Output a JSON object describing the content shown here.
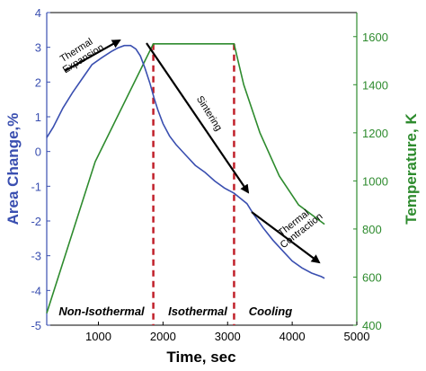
{
  "chart_data": {
    "type": "line",
    "title": "",
    "xlabel": "Time, sec",
    "ylabel_left": "Area Change,%",
    "ylabel_right": "Temperature, K",
    "xlim": [
      200,
      5000
    ],
    "ylim_left": [
      -5,
      4
    ],
    "ylim_right": [
      400,
      1700
    ],
    "x_ticks": [
      1000,
      2000,
      3000,
      4000,
      5000
    ],
    "y_ticks_left": [
      -5,
      -4,
      -3,
      -2,
      -1,
      0,
      1,
      2,
      3,
      4
    ],
    "y_ticks_right": [
      400,
      600,
      800,
      1000,
      1200,
      1400,
      1600
    ],
    "grid": false,
    "colors": {
      "area": "#3a4fb0",
      "temperature": "#2e8b2e",
      "dashed": "#c0202a",
      "left_axis": "#3a4fb0",
      "right_axis": "#2e8b2e"
    },
    "series": [
      {
        "axis": "left",
        "color": "#3a4fb0",
        "x": [
          200,
          300,
          450,
          600,
          750,
          900,
          1050,
          1200,
          1300,
          1400,
          1500,
          1580,
          1650,
          1720,
          1800,
          1860,
          1920,
          2000,
          2100,
          2200,
          2350,
          2500,
          2650,
          2800,
          2950,
          3100,
          3200,
          3300,
          3400,
          3550,
          3700,
          3850,
          4000,
          4150,
          4300,
          4450,
          4500
        ],
        "y": [
          0.4,
          0.7,
          1.25,
          1.7,
          2.1,
          2.5,
          2.7,
          2.88,
          2.98,
          3.05,
          3.05,
          2.95,
          2.75,
          2.4,
          1.95,
          1.55,
          1.2,
          0.8,
          0.45,
          0.2,
          -0.1,
          -0.4,
          -0.6,
          -0.85,
          -1.05,
          -1.2,
          -1.35,
          -1.5,
          -1.8,
          -2.2,
          -2.55,
          -2.85,
          -3.15,
          -3.35,
          -3.5,
          -3.6,
          -3.65
        ]
      },
      {
        "axis": "right",
        "color": "#2e8b2e",
        "x": [
          200,
          950,
          1850,
          3100,
          3250,
          3500,
          3800,
          4100,
          4500
        ],
        "y": [
          450,
          1080,
          1570,
          1570,
          1400,
          1200,
          1020,
          900,
          820
        ]
      }
    ],
    "dashed_lines_x": [
      1850,
      3100
    ],
    "annotations": [
      {
        "lines": [
          "Thermal",
          "Expansion"
        ]
      },
      {
        "lines": [
          "Sintering"
        ]
      },
      {
        "lines": [
          "Thermal",
          "Contraction"
        ]
      }
    ],
    "regions": [
      "Non-Isothermal",
      "Isothermal",
      "Cooling"
    ]
  }
}
